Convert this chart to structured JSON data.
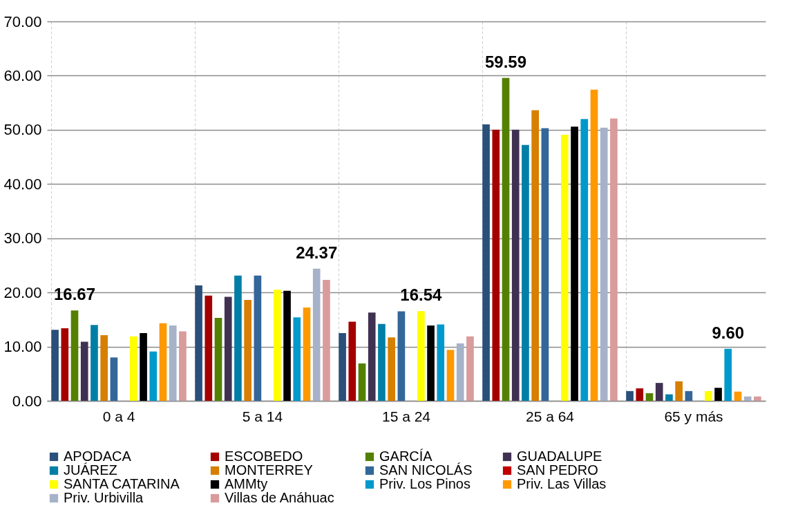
{
  "chart_data": {
    "type": "bar",
    "categories": [
      "0 a 4",
      "5 a 14",
      "15 a 24",
      "25 a 64",
      "65 y más"
    ],
    "series": [
      {
        "name": "APODACA",
        "color": "#2a4f7a",
        "values": [
          13.1,
          21.3,
          12.5,
          51.0,
          1.8
        ]
      },
      {
        "name": "ESCOBEDO",
        "color": "#a50000",
        "values": [
          13.4,
          19.4,
          14.6,
          50.0,
          2.3
        ]
      },
      {
        "name": "GARCÍA",
        "color": "#538000",
        "values": [
          16.67,
          15.3,
          6.9,
          59.59,
          1.4
        ],
        "value_labels": [
          "16.67",
          null,
          null,
          "59.59",
          null
        ]
      },
      {
        "name": "GUADALUPE",
        "color": "#403152",
        "values": [
          10.9,
          19.2,
          16.3,
          50.0,
          3.3
        ]
      },
      {
        "name": "JUÁREZ",
        "color": "#007fa6",
        "values": [
          14.0,
          23.1,
          14.2,
          47.2,
          1.2
        ]
      },
      {
        "name": "MONTERREY",
        "color": "#d67f00",
        "values": [
          12.1,
          18.6,
          11.7,
          53.6,
          3.6
        ]
      },
      {
        "name": "SAN NICOLÁS",
        "color": "#336699",
        "values": [
          8.0,
          23.1,
          16.5,
          50.3,
          1.8
        ]
      },
      {
        "name": "SAN PEDRO",
        "color": "#c00000",
        "values": [
          null,
          null,
          null,
          null,
          null
        ]
      },
      {
        "name": "SANTA CATARINA",
        "color": "#ffff00",
        "values": [
          11.9,
          20.5,
          16.54,
          49.1,
          1.8
        ],
        "value_labels": [
          null,
          null,
          "16.54",
          null,
          null
        ]
      },
      {
        "name": "AMMty",
        "color": "#000000",
        "values": [
          12.5,
          20.3,
          13.9,
          50.6,
          2.4
        ]
      },
      {
        "name": "Priv. Los Pinos",
        "color": "#0099cc",
        "values": [
          9.1,
          15.4,
          14.1,
          52.0,
          9.6
        ],
        "value_labels": [
          null,
          null,
          null,
          null,
          "9.60"
        ]
      },
      {
        "name": "Priv. Las Villas",
        "color": "#ff9900",
        "values": [
          14.3,
          17.2,
          9.4,
          57.4,
          1.7
        ]
      },
      {
        "name": "Priv. Urbivilla",
        "color": "#a6b2c8",
        "values": [
          13.9,
          24.37,
          10.6,
          50.4,
          0.8
        ],
        "value_labels": [
          null,
          "24.37",
          null,
          null,
          null
        ]
      },
      {
        "name": "Villas de Anáhuac",
        "color": "#d99b9b",
        "values": [
          12.8,
          22.3,
          11.9,
          52.1,
          0.8
        ]
      }
    ],
    "ylim": [
      0,
      70
    ],
    "yticks": [
      {
        "value": 0,
        "label": "0.00"
      },
      {
        "value": 10,
        "label": "10.00"
      },
      {
        "value": 20,
        "label": "20.00"
      },
      {
        "value": 30,
        "label": "30.00"
      },
      {
        "value": 40,
        "label": "40.00"
      },
      {
        "value": 50,
        "label": "50.00"
      },
      {
        "value": 60,
        "label": "60.00"
      },
      {
        "value": 70,
        "label": "70.00"
      }
    ],
    "grid": true,
    "legend": "bottom"
  }
}
